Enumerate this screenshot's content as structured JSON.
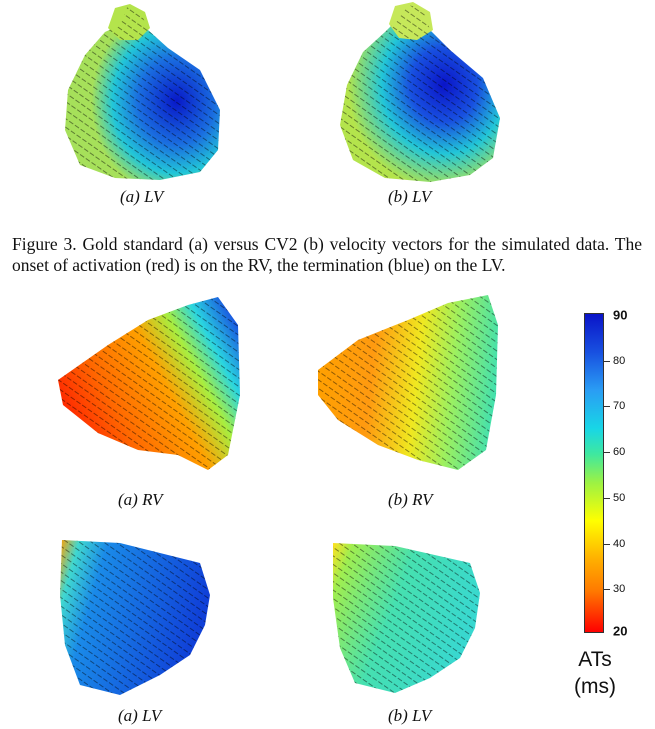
{
  "top_row": {
    "left_label": "(a) LV",
    "right_label": "(b) LV"
  },
  "caption": "Figure 3. Gold standard (a) versus CV2 (b) velocity vectors for the simulated data. The onset of activation (red) is on the RV, the termination (blue) on the LV.",
  "middle_row": {
    "left_label": "(a) RV",
    "right_label": "(b) RV"
  },
  "bottom_row": {
    "left_label": "(a) LV",
    "right_label": "(b) LV"
  },
  "colorbar": {
    "min_label": "20",
    "max_label": "90",
    "ticks": [
      "30",
      "40",
      "50",
      "60",
      "70",
      "80"
    ],
    "title_line1": "ATs",
    "title_line2": "(ms)",
    "colors": [
      "#ff0000",
      "#ff7a00",
      "#ffff00",
      "#3ee8a0",
      "#18d6e6",
      "#1850e0",
      "#0a14c8"
    ]
  }
}
